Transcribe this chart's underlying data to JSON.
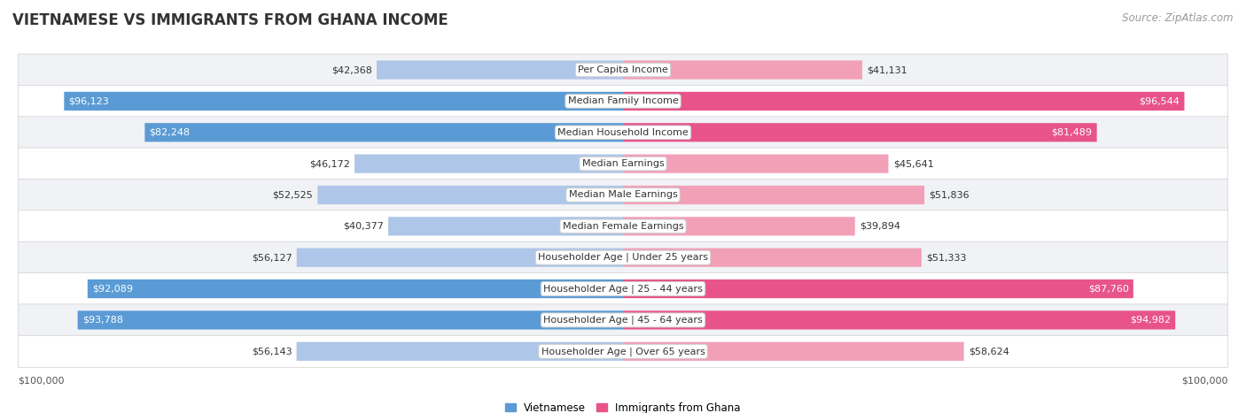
{
  "title": "VIETNAMESE VS IMMIGRANTS FROM GHANA INCOME",
  "source": "Source: ZipAtlas.com",
  "categories": [
    "Per Capita Income",
    "Median Family Income",
    "Median Household Income",
    "Median Earnings",
    "Median Male Earnings",
    "Median Female Earnings",
    "Householder Age | Under 25 years",
    "Householder Age | 25 - 44 years",
    "Householder Age | 45 - 64 years",
    "Householder Age | Over 65 years"
  ],
  "vietnamese_values": [
    42368,
    96123,
    82248,
    46172,
    52525,
    40377,
    56127,
    92089,
    93788,
    56143
  ],
  "ghana_values": [
    41131,
    96544,
    81489,
    45641,
    51836,
    39894,
    51333,
    87760,
    94982,
    58624
  ],
  "vietnamese_labels": [
    "$42,368",
    "$96,123",
    "$82,248",
    "$46,172",
    "$52,525",
    "$40,377",
    "$56,127",
    "$92,089",
    "$93,788",
    "$56,143"
  ],
  "ghana_labels": [
    "$41,131",
    "$96,544",
    "$81,489",
    "$45,641",
    "$51,836",
    "$39,894",
    "$51,333",
    "$87,760",
    "$94,982",
    "$58,624"
  ],
  "max_value": 100000,
  "blue_light": "#aec6e8",
  "blue_dark": "#5b9bd5",
  "pink_light": "#f2a0b8",
  "pink_dark": "#e8548a",
  "row_light": "#f0f2f5",
  "row_white": "#ffffff",
  "legend_blue": "Vietnamese",
  "legend_pink": "Immigrants from Ghana",
  "title_fontsize": 12,
  "source_fontsize": 8.5,
  "label_fontsize": 8,
  "cat_fontsize": 8,
  "axis_fontsize": 8,
  "bar_height": 0.6,
  "threshold": 0.75
}
